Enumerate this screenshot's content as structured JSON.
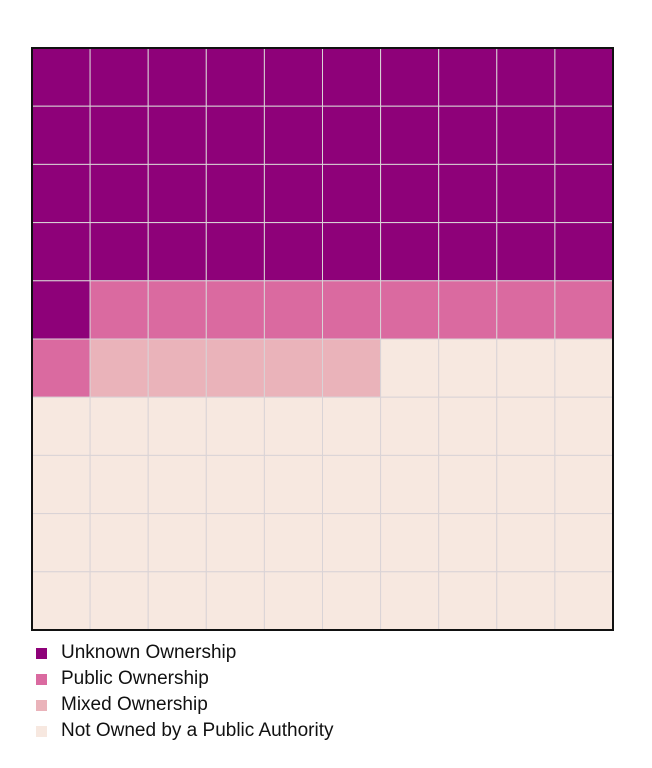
{
  "chart_data": {
    "type": "waffle",
    "grid": {
      "rows": 10,
      "cols": 10
    },
    "categories": [
      {
        "name": "Unknown Ownership",
        "value": 41,
        "color": "#8E0179"
      },
      {
        "name": "Public Ownership",
        "value": 10,
        "color": "#DA6AA0"
      },
      {
        "name": "Mixed Ownership",
        "value": 5,
        "color": "#EAB3BA"
      },
      {
        "name": "Not Owned by a Public Authority",
        "value": 44,
        "color": "#F7E8E0"
      }
    ],
    "legend": {
      "position": "bottom-left"
    },
    "title": "",
    "xlabel": "",
    "ylabel": ""
  }
}
